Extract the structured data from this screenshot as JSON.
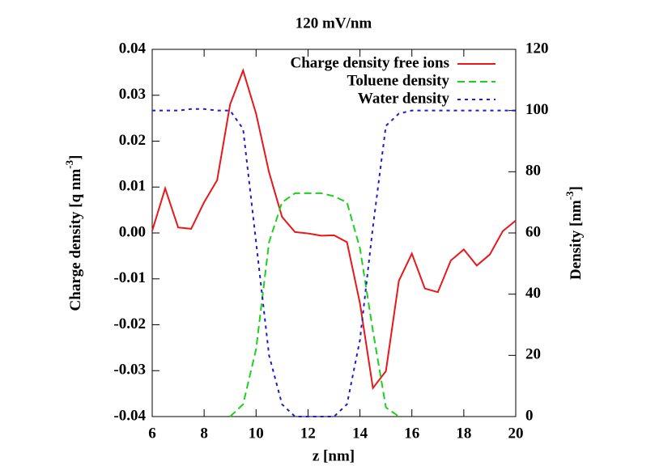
{
  "chart_data": {
    "type": "line",
    "title": "120 mV/nm",
    "x_label": "z [nm]",
    "y_label": {
      "text": "Charge density [q nm",
      "sup": "-3",
      "end": "]"
    },
    "y2_label": {
      "text": "Density [nm",
      "sup": "-3",
      "end": "]"
    },
    "x": [
      6,
      6.5,
      7,
      7.5,
      8,
      8.5,
      9,
      9.5,
      10,
      10.5,
      11,
      11.5,
      12,
      12.5,
      13,
      13.5,
      14,
      14.5,
      15,
      15.5,
      16,
      16.5,
      17,
      17.5,
      18,
      18.5,
      19,
      19.5,
      20
    ],
    "xlim": [
      6,
      20
    ],
    "xticks": [
      6,
      8,
      10,
      12,
      14,
      16,
      18,
      20
    ],
    "ylim": [
      -0.04,
      0.04
    ],
    "yticks": [
      -0.04,
      -0.03,
      -0.02,
      -0.01,
      {
        "value": 0,
        "label": "0.00"
      },
      0.01,
      0.02,
      0.03,
      0.04
    ],
    "y2lim": [
      0,
      120
    ],
    "y2ticks": [
      0,
      20,
      40,
      60,
      80,
      100,
      120
    ],
    "legend": "top-right",
    "series": [
      {
        "name": "Charge density free ions",
        "color": "#e8171a",
        "line_style": "solid",
        "values": [
          0.0005,
          0.0097,
          0.0012,
          0.0009,
          0.0067,
          0.0115,
          0.028,
          0.0354,
          0.026,
          0.0132,
          0.0035,
          0.0002,
          -0.0001,
          -0.0006,
          -0.0005,
          -0.002,
          -0.0153,
          -0.0338,
          -0.0301,
          -0.0104,
          -0.0045,
          -0.0121,
          -0.0129,
          -0.006,
          -0.0036,
          -0.0071,
          -0.0047,
          0.0004,
          0.0027
        ]
      },
      {
        "name": "Toluene density",
        "color": "#1fcf1f",
        "line_style": "dashed",
        "axis": "y2",
        "values": [
          null,
          null,
          null,
          null,
          null,
          null,
          0,
          4,
          22,
          57,
          70,
          73,
          73,
          73,
          72,
          70,
          55,
          28,
          3,
          0,
          null,
          null,
          null,
          null,
          null,
          null,
          null,
          null,
          null
        ]
      },
      {
        "name": "Water density",
        "color": "#1c1ccc",
        "line_style": "dotted",
        "axis": "y2",
        "values": [
          100,
          100,
          100,
          100.5,
          100.5,
          100,
          100,
          94,
          57,
          20,
          4,
          0,
          0,
          0,
          0,
          4,
          25,
          62,
          95,
          99,
          100,
          100,
          100,
          100,
          100,
          100,
          100,
          100,
          100
        ]
      }
    ]
  }
}
